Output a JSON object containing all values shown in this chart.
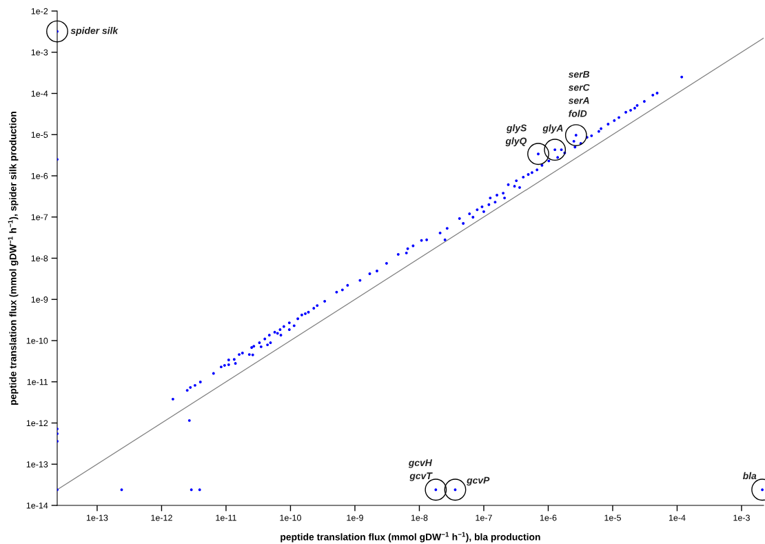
{
  "chart_data": {
    "type": "scatter",
    "xlabel": "peptide translation flux (mmol gDW$^{−1}$ h$^{−1}$), bla production",
    "ylabel": "peptide translation flux (mmol gDW$^{−1}$ h$^{−1}$), spider silk production",
    "log": "xy",
    "grid": false,
    "legend": false,
    "xlim": [
      2.4e-14,
      0.0022
    ],
    "ylim": [
      1e-14,
      0.01
    ],
    "xticks": [
      {
        "value": 1e-13,
        "label": "1e-13"
      },
      {
        "value": 1e-12,
        "label": "1e-12"
      },
      {
        "value": 1e-11,
        "label": "1e-11"
      },
      {
        "value": 1e-10,
        "label": "1e-10"
      },
      {
        "value": 1e-09,
        "label": "1e-9"
      },
      {
        "value": 1e-08,
        "label": "1e-8"
      },
      {
        "value": 1e-07,
        "label": "1e-7"
      },
      {
        "value": 1e-06,
        "label": "1e-6"
      },
      {
        "value": 1e-05,
        "label": "1e-5"
      },
      {
        "value": 0.0001,
        "label": "1e-4"
      },
      {
        "value": 0.001,
        "label": "1e-3"
      }
    ],
    "yticks": [
      {
        "value": 1e-14,
        "label": "1e-14"
      },
      {
        "value": 1e-13,
        "label": "1e-13"
      },
      {
        "value": 1e-12,
        "label": "1e-12"
      },
      {
        "value": 1e-11,
        "label": "1e-11"
      },
      {
        "value": 1e-10,
        "label": "1e-10"
      },
      {
        "value": 1e-09,
        "label": "1e-9"
      },
      {
        "value": 1e-08,
        "label": "1e-8"
      },
      {
        "value": 1e-07,
        "label": "1e-7"
      },
      {
        "value": 1e-06,
        "label": "1e-6"
      },
      {
        "value": 1e-05,
        "label": "1e-5"
      },
      {
        "value": 0.0001,
        "label": "1e-4"
      },
      {
        "value": 0.001,
        "label": "1e-3"
      },
      {
        "value": 0.01,
        "label": "1e-2"
      }
    ],
    "series": [
      {
        "type": "scatter",
        "marker": "circle",
        "color": "#0000ff",
        "x": [
          2.4e-14,
          2.4e-14,
          2.4e-14,
          2.4e-14,
          2.4e-14,
          2.4e-14,
          2.4e-13,
          2.9e-12,
          3.9e-12,
          1.8e-08,
          3.6e-08,
          0.0021,
          2.7e-12,
          1.5e-12,
          2.5e-12,
          2.8e-12,
          3.3e-12,
          4e-12,
          6.4e-12,
          8.4e-12,
          9.5e-12,
          1.1e-11,
          1.1e-11,
          1.34e-11,
          1.4e-11,
          1.6e-11,
          1.8e-11,
          2.3e-11,
          2.5e-11,
          2.6e-11,
          2.7e-11,
          3.3e-11,
          3.5e-11,
          4e-11,
          4.4e-11,
          4.7e-11,
          4.9e-11,
          5.7e-11,
          6.3e-11,
          6.9e-11,
          7.1e-11,
          7.9e-11,
          9.6e-11,
          9.6e-11,
          1.14e-10,
          1.3e-10,
          1.5e-10,
          1.7e-10,
          1.9e-10,
          2.3e-10,
          2.6e-10,
          3.4e-10,
          5.2e-10,
          6.4e-10,
          7.7e-10,
          1.2e-09,
          1.7e-09,
          2.2e-09,
          3.1e-09,
          4.7e-09,
          6.3e-09,
          6.6e-09,
          8e-09,
          1.08e-08,
          1.3e-08,
          2.1e-08,
          2.5e-08,
          2.7e-08,
          4.2e-08,
          4.8e-08,
          6e-08,
          6.8e-08,
          7.9e-08,
          9.4e-08,
          1e-07,
          1.2e-07,
          1.26e-07,
          1.5e-07,
          1.6e-07,
          2e-07,
          2.1e-07,
          2.4e-07,
          3e-07,
          3.2e-07,
          3.6e-07,
          4.1e-07,
          4.9e-07,
          5.6e-07,
          6.7e-07,
          8e-07,
          7e-07,
          1.02e-06,
          1.4e-06,
          1.27e-06,
          1.6e-06,
          1.8e-06,
          2.5e-06,
          2.6e-06,
          2.7e-06,
          3.2e-06,
          4e-06,
          4.7e-06,
          6.1e-06,
          6.6e-06,
          8.5e-06,
          1.06e-05,
          1.25e-05,
          1.6e-05,
          1.9e-05,
          2.2e-05,
          2.4e-05,
          3.1e-05,
          4.2e-05,
          4.9e-05,
          0.000118
        ],
        "values": [
          0.0032,
          2.5e-06,
          7.2e-13,
          5.5e-13,
          3.6e-13,
          2.4e-14,
          2.4e-14,
          2.4e-14,
          2.4e-14,
          2.4e-14,
          2.4e-14,
          2.4e-14,
          1.15e-12,
          3.8e-12,
          6.2e-12,
          7.3e-12,
          8.2e-12,
          9.9e-12,
          1.6e-11,
          2.3e-11,
          2.5e-11,
          3.4e-11,
          2.6e-11,
          3.5e-11,
          2.8e-11,
          4.6e-11,
          5e-11,
          4.6e-11,
          6.8e-11,
          4.5e-11,
          7.3e-11,
          8.9e-11,
          7.1e-11,
          1.1e-10,
          7.9e-11,
          1.36e-10,
          8.9e-11,
          1.6e-10,
          1.5e-10,
          1.85e-10,
          1.36e-10,
          2.2e-10,
          2.7e-10,
          1.85e-10,
          2.3e-10,
          3.4e-10,
          4.2e-10,
          4.5e-10,
          4.9e-10,
          6.1e-10,
          7.1e-10,
          9e-10,
          1.5e-09,
          1.7e-09,
          2.2e-09,
          2.9e-09,
          4.2e-09,
          4.9e-09,
          7.5e-09,
          1.24e-08,
          1.34e-08,
          1.7e-08,
          2e-08,
          2.7e-08,
          2.8e-08,
          4.1e-08,
          2.8e-08,
          5.3e-08,
          9.2e-08,
          7e-08,
          1.2e-07,
          9.9e-08,
          1.5e-07,
          1.77e-07,
          1.35e-07,
          2e-07,
          2.9e-07,
          2.3e-07,
          3.4e-07,
          3.8e-07,
          2.9e-07,
          6.1e-07,
          5.6e-07,
          7.6e-07,
          5.2e-07,
          9.3e-07,
          1.08e-06,
          1.2e-06,
          1.4e-06,
          1.8e-06,
          3.4e-06,
          2.3e-06,
          2.8e-06,
          4.3e-06,
          4.3e-06,
          3.6e-06,
          6.9e-06,
          5e-06,
          9.7e-06,
          6.1e-06,
          8.6e-06,
          9.4e-06,
          1.2e-05,
          1.4e-05,
          1.8e-05,
          2.2e-05,
          2.6e-05,
          3.5e-05,
          3.9e-05,
          4.4e-05,
          5.1e-05,
          6.4e-05,
          9.1e-05,
          0.000102,
          0.00025
        ]
      },
      {
        "type": "line",
        "color": "#808080",
        "x": [
          2.4e-14,
          0.0022
        ],
        "values": [
          2.4e-14,
          0.0022
        ]
      }
    ],
    "annotations": [
      {
        "text": "spider silk",
        "x": 2.4e-14,
        "y": 0.0032
      },
      {
        "text": "glyS\nglyQ",
        "x": 7e-07,
        "y": 3.4e-06
      },
      {
        "text": "glyA",
        "x": 1.27e-06,
        "y": 4.3e-06
      },
      {
        "text": "serB\nserC\nserA\nfolD",
        "x": 2.7e-06,
        "y": 9.7e-06
      },
      {
        "text": "gcvH\ngcvT",
        "x": 1.8e-08,
        "y": 2.4e-14
      },
      {
        "text": "gcvP",
        "x": 3.6e-08,
        "y": 2.4e-14
      },
      {
        "text": "bla",
        "x": 0.0021,
        "y": 2.4e-14
      }
    ]
  }
}
